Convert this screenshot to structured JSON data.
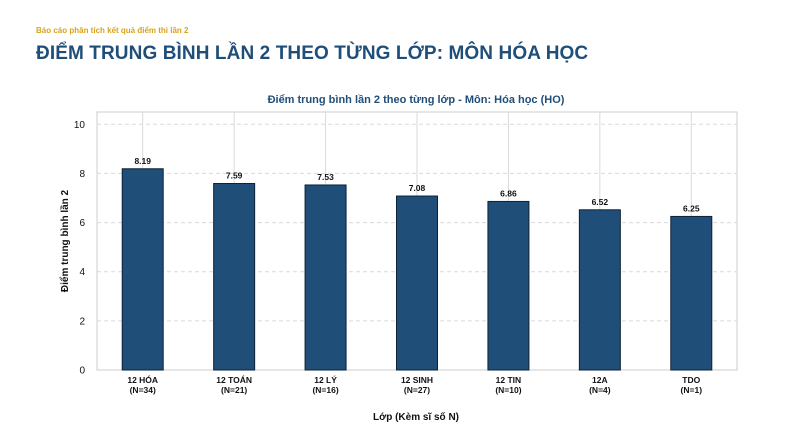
{
  "header": {
    "eyebrow": "Báo cáo phân tích kết quả điểm thi lần 2",
    "title": "ĐIỂM TRUNG BÌNH LẦN 2 THEO TỪNG LỚP: MÔN HÓA HỌC"
  },
  "colors": {
    "bar": "#1f4e79",
    "title": "#1f4e79",
    "eyebrow": "#d9a21b"
  },
  "chart_data": {
    "type": "bar",
    "title": "Điểm trung bình lần 2 theo từng lớp - Môn: Hóa học (HO)",
    "xlabel": "Lớp (Kèm sĩ số N)",
    "ylabel": "Điểm trung bình lần 2",
    "categories": [
      [
        "12 HÓA",
        "(N=34)"
      ],
      [
        "12 TOÁN",
        "(N=21)"
      ],
      [
        "12 LÝ",
        "(N=16)"
      ],
      [
        "12 SINH",
        "(N=27)"
      ],
      [
        "12 TIN",
        "(N=10)"
      ],
      [
        "12A",
        "(N=4)"
      ],
      [
        "TDO",
        "(N=1)"
      ]
    ],
    "values": [
      8.19,
      7.59,
      7.53,
      7.08,
      6.86,
      6.52,
      6.25
    ],
    "value_labels": [
      "8.19",
      "7.59",
      "7.53",
      "7.08",
      "6.86",
      "6.52",
      "6.25"
    ],
    "ylim": [
      0,
      10.5
    ],
    "yticks": [
      0,
      2,
      4,
      6,
      8,
      10
    ],
    "grid": true,
    "legend": "none"
  }
}
